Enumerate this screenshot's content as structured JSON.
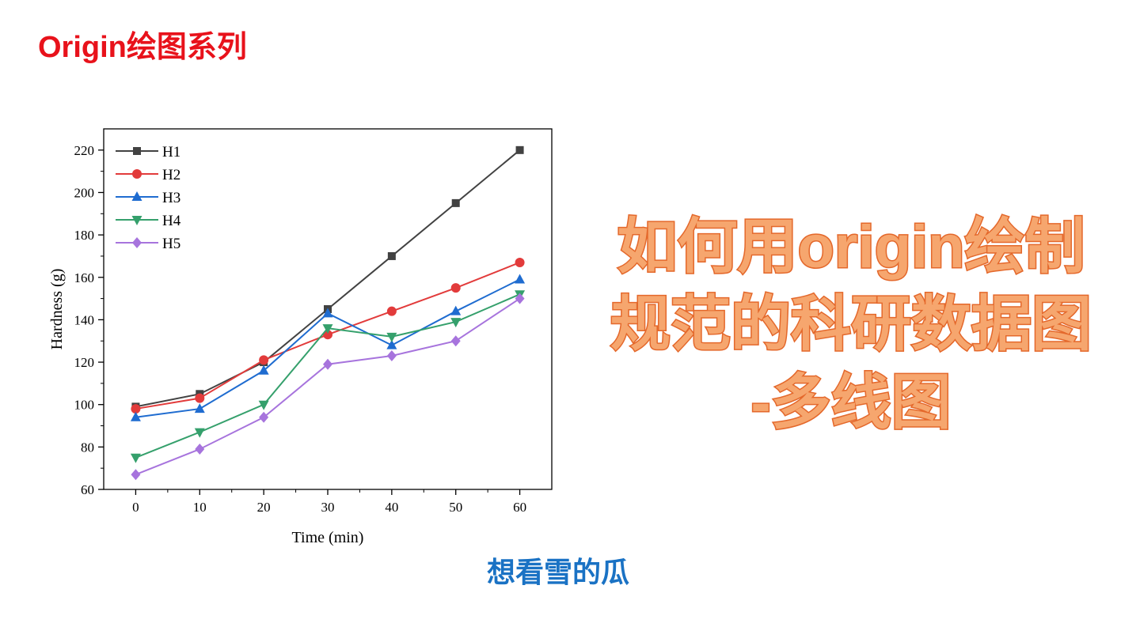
{
  "header": "Origin绘图系列",
  "headline": [
    "如何用origin绘制",
    "规范的科研数据图",
    "-多线图"
  ],
  "author": "想看雪的瓜",
  "chart_data": {
    "type": "line",
    "x_label": "Time (min)",
    "y_label": "Hardness (g)",
    "x": [
      0,
      10,
      20,
      30,
      40,
      50,
      60
    ],
    "xlim": [
      -5,
      65
    ],
    "xticks": [
      0,
      10,
      20,
      30,
      40,
      50,
      60
    ],
    "ylim": [
      60,
      230
    ],
    "yticks": [
      60,
      80,
      100,
      120,
      140,
      160,
      180,
      200,
      220
    ],
    "legend": "upper-left",
    "series": [
      {
        "name": "H1",
        "color": "#424242",
        "marker": "square",
        "values": [
          99,
          105,
          120,
          145,
          170,
          195,
          220
        ]
      },
      {
        "name": "H2",
        "color": "#e23b3b",
        "marker": "circle",
        "values": [
          98,
          103,
          121,
          133,
          144,
          155,
          167
        ]
      },
      {
        "name": "H3",
        "color": "#1f6cd0",
        "marker": "triangle-up",
        "values": [
          94,
          98,
          116,
          143,
          128,
          144,
          159
        ]
      },
      {
        "name": "H4",
        "color": "#35a06c",
        "marker": "triangle-down",
        "values": [
          75,
          87,
          100,
          136,
          132,
          139,
          152
        ]
      },
      {
        "name": "H5",
        "color": "#a774dd",
        "marker": "diamond",
        "values": [
          67,
          79,
          94,
          119,
          123,
          130,
          150
        ]
      }
    ]
  }
}
